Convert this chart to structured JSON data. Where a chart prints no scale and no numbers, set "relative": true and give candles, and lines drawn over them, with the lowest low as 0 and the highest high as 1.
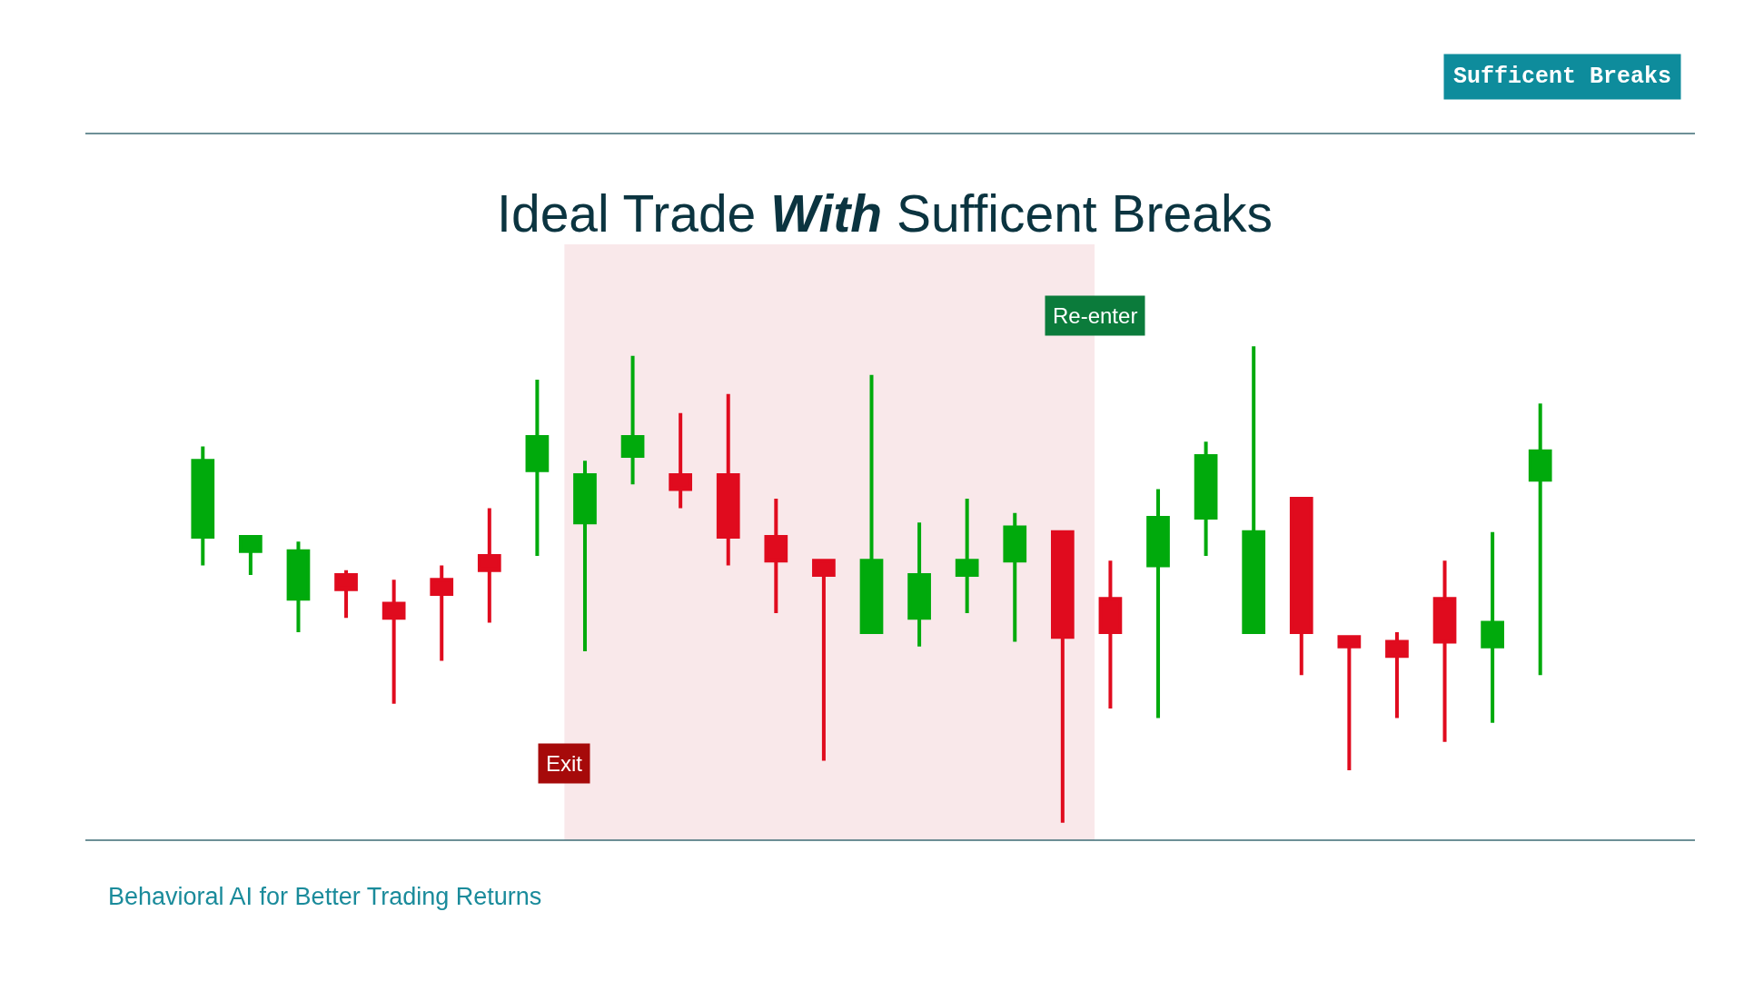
{
  "chart_data": {
    "type": "candlestick",
    "title": "Ideal Trade With Sufficent Breaks",
    "relative": true,
    "annotations": [
      "Exit",
      "Re-enter",
      "Sufficent Breaks",
      "Behavioral AI for Better Trading Returns"
    ],
    "categories": [
      null,
      null,
      null,
      null,
      null,
      null,
      null,
      null,
      null,
      null,
      null,
      null,
      null,
      null,
      null,
      null,
      null,
      null,
      null,
      null,
      null,
      null,
      null,
      null,
      null,
      null,
      null,
      null,
      null
    ],
    "ohlc": [
      [
        0.6,
        0.79,
        0.54,
        0.76
      ],
      [
        0.57,
        0.6,
        0.52,
        0.6
      ],
      [
        0.47,
        0.59,
        0.4,
        0.57
      ],
      [
        0.52,
        0.53,
        0.43,
        0.49
      ],
      [
        0.46,
        0.51,
        0.25,
        0.43
      ],
      [
        0.51,
        0.54,
        0.34,
        0.48
      ],
      [
        0.56,
        0.66,
        0.42,
        0.53
      ],
      [
        0.74,
        0.93,
        0.56,
        0.81
      ],
      [
        0.63,
        0.76,
        0.36,
        0.73
      ],
      [
        0.77,
        0.98,
        0.71,
        0.81
      ],
      [
        0.73,
        0.86,
        0.66,
        0.7
      ],
      [
        0.73,
        0.9,
        0.54,
        0.6
      ],
      [
        0.6,
        0.68,
        0.44,
        0.55
      ],
      [
        0.55,
        0.55,
        0.13,
        0.52
      ],
      [
        0.4,
        0.94,
        0.4,
        0.55
      ],
      [
        0.43,
        0.63,
        0.37,
        0.52
      ],
      [
        0.52,
        0.68,
        0.44,
        0.55
      ],
      [
        0.55,
        0.65,
        0.38,
        0.62
      ],
      [
        0.61,
        0.61,
        0,
        0.39
      ],
      [
        0.47,
        0.55,
        0.24,
        0.4
      ],
      [
        0.54,
        0.7,
        0.22,
        0.64
      ],
      [
        0.64,
        0.8,
        0.56,
        0.77
      ],
      [
        0.4,
        1,
        0.4,
        0.61
      ],
      [
        0.68,
        0.68,
        0.31,
        0.4
      ],
      [
        0.39,
        0.39,
        0.11,
        0.37
      ],
      [
        0.38,
        0.4,
        0.22,
        0.35
      ],
      [
        0.47,
        0.55,
        0.17,
        0.38
      ],
      [
        0.37,
        0.61,
        0.21,
        0.42
      ],
      [
        0.72,
        0.88,
        0.31,
        0.78
      ]
    ],
    "colors": [
      "#00aa0c",
      "#00aa0c",
      "#00aa0c",
      "#e00b1e",
      "#e00b1e",
      "#e00b1e",
      "#e00b1e",
      "#00aa0c",
      "#00aa0c",
      "#00aa0c",
      "#e00b1e",
      "#e00b1e",
      "#e00b1e",
      "#e00b1e",
      "#00aa0c",
      "#00aa0c",
      "#00aa0c",
      "#00aa0c",
      "#e00b1e",
      "#e00b1e",
      "#00aa0c",
      "#00aa0c",
      "#00aa0c",
      "#e00b1e",
      "#e00b1e",
      "#e00b1e",
      "#e00b1e",
      "#00aa0c",
      "#00aa0c"
    ]
  }
}
